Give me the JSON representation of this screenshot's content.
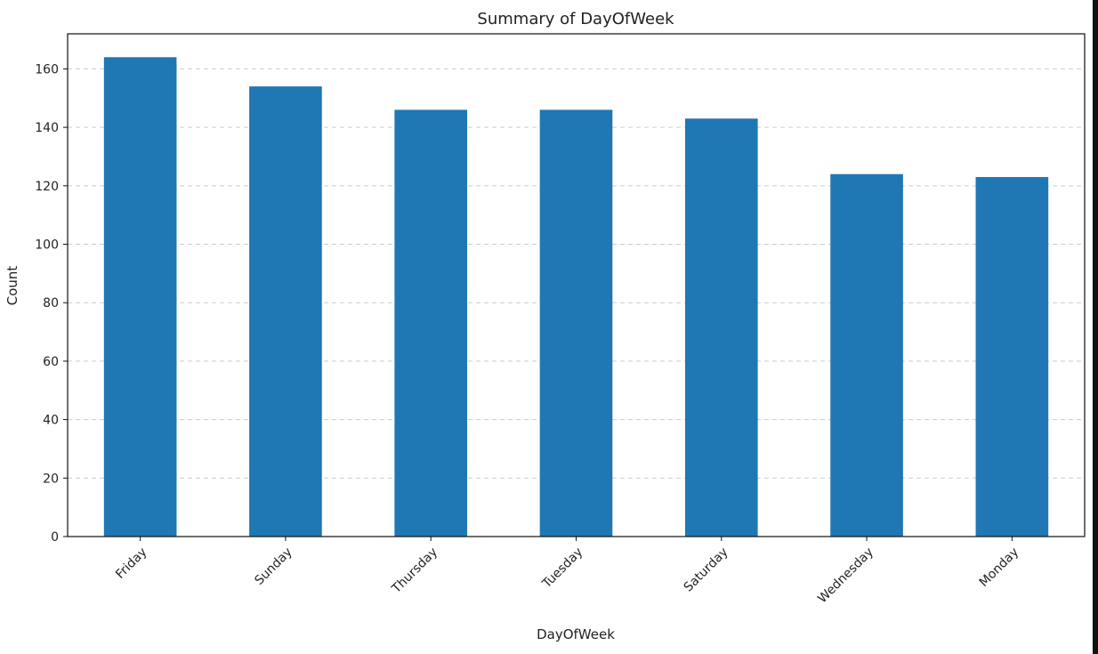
{
  "chart_data": {
    "type": "bar",
    "title": "Summary of DayOfWeek",
    "xlabel": "DayOfWeek",
    "ylabel": "Count",
    "categories": [
      "Friday",
      "Sunday",
      "Thursday",
      "Tuesday",
      "Saturday",
      "Wednesday",
      "Monday"
    ],
    "values": [
      164,
      154,
      146,
      146,
      143,
      124,
      123
    ],
    "ylim": [
      0,
      172
    ],
    "yticks": [
      0,
      20,
      40,
      60,
      80,
      100,
      120,
      140,
      160
    ],
    "grid": "horizontal-dashed",
    "bar_color": "#1f77b4",
    "grid_color": "#cccccc"
  }
}
